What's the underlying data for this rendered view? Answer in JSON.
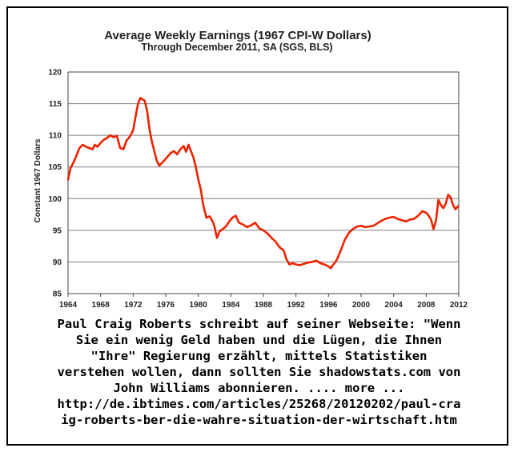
{
  "chart_data": {
    "type": "line",
    "title": "Average Weekly Earnings (1967 CPI-W Dollars)",
    "subtitle": "Through December 2011, SA  (SGS, BLS)",
    "xlabel": "",
    "ylabel": "Constant 1967 Dollars",
    "xlim": [
      1964,
      2012
    ],
    "ylim": [
      85,
      120
    ],
    "x_ticks": [
      "1964",
      "1968",
      "1972",
      "1976",
      "1980",
      "1984",
      "1988",
      "1992",
      "1996",
      "2000",
      "2004",
      "2008",
      "2012"
    ],
    "y_ticks": [
      "85",
      "90",
      "95",
      "100",
      "105",
      "110",
      "115",
      "120"
    ],
    "grid": true,
    "series": [
      {
        "color": "#ee2200",
        "x": [
          1964.0,
          1964.3,
          1964.7,
          1965.0,
          1965.4,
          1965.8,
          1966.2,
          1966.6,
          1967.0,
          1967.3,
          1967.6,
          1968.0,
          1968.4,
          1968.8,
          1969.2,
          1969.6,
          1970.0,
          1970.4,
          1970.8,
          1971.2,
          1971.6,
          1972.0,
          1972.3,
          1972.6,
          1972.9,
          1973.1,
          1973.4,
          1973.7,
          1974.0,
          1974.3,
          1974.6,
          1974.9,
          1975.2,
          1975.5,
          1975.8,
          1976.2,
          1976.6,
          1977.0,
          1977.4,
          1977.8,
          1978.2,
          1978.5,
          1978.8,
          1979.1,
          1979.4,
          1979.7,
          1980.0,
          1980.3,
          1980.6,
          1981.0,
          1981.4,
          1981.8,
          1982.0,
          1982.3,
          1982.6,
          1983.0,
          1983.4,
          1983.8,
          1984.2,
          1984.6,
          1985.0,
          1985.5,
          1986.0,
          1986.5,
          1987.0,
          1987.5,
          1988.0,
          1988.5,
          1989.0,
          1989.5,
          1990.0,
          1990.5,
          1990.8,
          1991.2,
          1991.6,
          1992.0,
          1992.5,
          1993.0,
          1993.5,
          1994.0,
          1994.5,
          1995.0,
          1995.5,
          1996.0,
          1996.3,
          1996.6,
          1997.0,
          1997.5,
          1998.0,
          1998.5,
          1999.0,
          1999.5,
          2000.0,
          2000.5,
          2001.0,
          2001.5,
          2002.0,
          2002.5,
          2003.0,
          2003.5,
          2004.0,
          2004.5,
          2005.0,
          2005.5,
          2006.0,
          2006.5,
          2007.0,
          2007.5,
          2008.0,
          2008.3,
          2008.6,
          2008.9,
          2009.2,
          2009.5,
          2009.8,
          2010.1,
          2010.4,
          2010.7,
          2011.0,
          2011.3,
          2011.6,
          2011.9
        ],
        "y": [
          103.0,
          104.8,
          105.8,
          106.7,
          108.0,
          108.5,
          108.2,
          108.0,
          107.8,
          108.5,
          108.2,
          108.8,
          109.3,
          109.6,
          110.0,
          109.7,
          109.9,
          108.0,
          107.8,
          109.2,
          109.8,
          110.8,
          113.0,
          115.0,
          115.9,
          115.7,
          115.5,
          114.0,
          111.0,
          109.0,
          107.5,
          106.0,
          105.2,
          105.6,
          106.0,
          106.6,
          107.2,
          107.5,
          107.0,
          107.8,
          108.3,
          107.4,
          108.5,
          107.5,
          106.5,
          105.0,
          103.0,
          101.5,
          99.0,
          97.0,
          97.2,
          96.3,
          95.5,
          93.8,
          94.8,
          95.2,
          95.6,
          96.4,
          97.0,
          97.3,
          96.2,
          95.9,
          95.5,
          95.8,
          96.2,
          95.3,
          95.0,
          94.5,
          93.8,
          93.2,
          92.3,
          91.8,
          90.5,
          89.6,
          89.8,
          89.6,
          89.5,
          89.7,
          89.9,
          90.0,
          90.2,
          89.8,
          89.6,
          89.3,
          89.0,
          89.6,
          90.3,
          91.8,
          93.5,
          94.6,
          95.2,
          95.6,
          95.7,
          95.5,
          95.6,
          95.7,
          96.1,
          96.5,
          96.8,
          97.0,
          97.1,
          96.8,
          96.6,
          96.4,
          96.7,
          96.8,
          97.3,
          98.0,
          97.8,
          97.3,
          96.7,
          95.2,
          96.5,
          99.8,
          99.0,
          98.5,
          99.2,
          100.6,
          100.2,
          99.0,
          98.3,
          98.8
        ]
      }
    ]
  },
  "caption": {
    "lines": [
      "Paul Craig Roberts schreibt auf seiner Webseite: \"Wenn",
      "Sie ein wenig Geld haben und die Lügen, die Ihnen",
      "\"Ihre\" Regierung erzählt, mittels Statistiken",
      "verstehen wollen, dann sollten Sie shadowstats.com von",
      "John Williams abonnieren. .... more ...",
      "http://de.ibtimes.com/articles/25268/20120202/paul-cra",
      "ig-roberts-ber-die-wahre-situation-der-wirtschaft.htm"
    ]
  }
}
